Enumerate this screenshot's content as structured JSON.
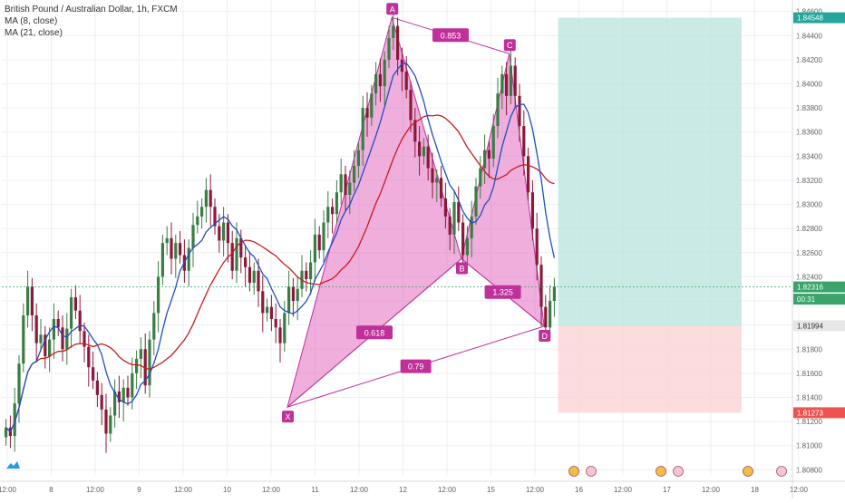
{
  "header": {
    "title": "British Pound / Australian Dollar, 1h, FXCM",
    "ma_fast": "MA (8, close)",
    "ma_slow": "MA (21, close)"
  },
  "colors": {
    "bull": "#3a7d44",
    "bear": "#8b1a3a",
    "ma_fast": "#1f4fbf",
    "ma_slow": "#c41e1e",
    "pattern_fill": "#e26bbf",
    "pattern_line": "#c0309a",
    "target_zone": "#b8e3dd",
    "stop_zone": "#fbd6d6",
    "grid": "#eceff4",
    "axis_text": "#5d6066"
  },
  "chart_data": {
    "type": "candlestick",
    "title": "British Pound / Australian Dollar, 1h, FXCM",
    "ylim": [
      1.8075,
      1.8465
    ],
    "y_ticks": [
      "1.80800",
      "1.81000",
      "1.81200",
      "1.81400",
      "1.81600",
      "1.81800",
      "1.82000",
      "1.82200",
      "1.82400",
      "1.82600",
      "1.82800",
      "1.83000",
      "1.83200",
      "1.83400",
      "1.83600",
      "1.83800",
      "1.84000",
      "1.84200",
      "1.84400",
      "1.84600"
    ],
    "x_ticks": [
      "12:00",
      "8",
      "12:00",
      "9",
      "12:00",
      "10",
      "12:00",
      "11",
      "12:00",
      "12",
      "12:00",
      "15",
      "12:00",
      "16",
      "12:00",
      "17",
      "12:00",
      "18",
      "12:00"
    ],
    "price_badges": [
      {
        "label": "1.84548",
        "value": 1.84548,
        "color": "#26a69a"
      },
      {
        "label": "1.82316",
        "value": 1.82316,
        "color": "#3aa46b"
      },
      {
        "label": "00:31",
        "value": 1.82215,
        "color": "#3aa46b"
      },
      {
        "label": "1.81994",
        "value": 1.81994,
        "color": "#e6e6e6"
      },
      {
        "label": "1.81273",
        "value": 1.81273,
        "color": "#ef5350"
      }
    ],
    "pattern": {
      "points": [
        {
          "label": "X",
          "x_index": 65,
          "price": 1.8132
        },
        {
          "label": "A",
          "x_index": 89,
          "price": 1.8455
        },
        {
          "label": "B",
          "x_index": 105,
          "price": 1.8255
        },
        {
          "label": "C",
          "x_index": 116,
          "price": 1.8425
        },
        {
          "label": "D",
          "x_index": 124,
          "price": 1.8199
        }
      ],
      "ratios": [
        {
          "label": "0.853",
          "between": [
            "A",
            "C"
          ]
        },
        {
          "label": "0.618",
          "between": [
            "X",
            "B"
          ]
        },
        {
          "label": "1.325",
          "between": [
            "B",
            "D"
          ]
        },
        {
          "label": "0.79",
          "between": [
            "X",
            "D"
          ]
        }
      ]
    },
    "position": {
      "entry": 1.81994,
      "target": 1.84548,
      "stop": 1.81273
    },
    "candles_close": [
      1.8115,
      1.8108,
      1.8135,
      1.8168,
      1.8208,
      1.8232,
      1.8208,
      1.8185,
      1.8192,
      1.8174,
      1.8188,
      1.8205,
      1.8198,
      1.818,
      1.8197,
      1.8223,
      1.8212,
      1.8195,
      1.8182,
      1.8165,
      1.8154,
      1.8142,
      1.813,
      1.811,
      1.8125,
      1.8145,
      1.8136,
      1.8148,
      1.814,
      1.816,
      1.8172,
      1.818,
      1.815,
      1.8188,
      1.821,
      1.824,
      1.8268,
      1.8272,
      1.8255,
      1.8268,
      1.8258,
      1.8245,
      1.8264,
      1.8283,
      1.829,
      1.8298,
      1.8312,
      1.8298,
      1.8282,
      1.827,
      1.8285,
      1.8268,
      1.8245,
      1.8272,
      1.8256,
      1.8248,
      1.8235,
      1.8245,
      1.8228,
      1.821,
      1.8215,
      1.8205,
      1.8198,
      1.8185,
      1.821,
      1.8232,
      1.822,
      1.823,
      1.8245,
      1.8238,
      1.8252,
      1.8275,
      1.8262,
      1.8285,
      1.8298,
      1.8292,
      1.831,
      1.8325,
      1.8308,
      1.8318,
      1.8332,
      1.8345,
      1.838,
      1.8372,
      1.8392,
      1.8408,
      1.8398,
      1.842,
      1.8438,
      1.8448,
      1.842,
      1.841,
      1.8395,
      1.837,
      1.8352,
      1.834,
      1.8348,
      1.833,
      1.8318,
      1.8322,
      1.8305,
      1.829,
      1.8275,
      1.8302,
      1.8285,
      1.8258,
      1.8272,
      1.829,
      1.8315,
      1.833,
      1.8345,
      1.8338,
      1.8365,
      1.8392,
      1.8408,
      1.839,
      1.8415,
      1.839,
      1.8365,
      1.834,
      1.831,
      1.828,
      1.825,
      1.8215,
      1.8198,
      1.822,
      1.8232
    ]
  },
  "toolbar": {
    "logo": "TradingView logo"
  }
}
